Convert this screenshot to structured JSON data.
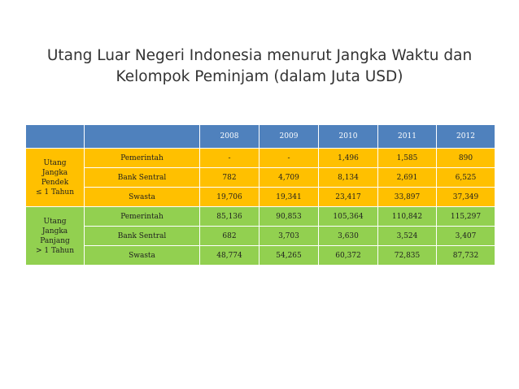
{
  "title": {
    "line1": "Utang Luar Negeri Indonesia menurut Jangka Waktu dan",
    "line2": "Kelompok Peminjam (dalam Juta USD)"
  },
  "table": {
    "years": [
      "2008",
      "2009",
      "2010",
      "2011",
      "2012"
    ],
    "groups": [
      {
        "label_lines": [
          "Utang",
          "Jangka",
          "Pendek",
          "≤ 1 Tahun"
        ],
        "color": "#ffc000",
        "rows": [
          {
            "borrower": "Pemerintah",
            "values": [
              "-",
              "-",
              "1,496",
              "1,585",
              "890"
            ]
          },
          {
            "borrower": "Bank Sentral",
            "values": [
              "782",
              "4,709",
              "8,134",
              "2,691",
              "6,525"
            ]
          },
          {
            "borrower": "Swasta",
            "values": [
              "19,706",
              "19,341",
              "23,417",
              "33,897",
              "37,349"
            ]
          }
        ]
      },
      {
        "label_lines": [
          "Utang",
          "Jangka",
          "Panjang",
          "> 1 Tahun"
        ],
        "color": "#92d050",
        "rows": [
          {
            "borrower": "Pemerintah",
            "values": [
              "85,136",
              "90,853",
              "105,364",
              "110,842",
              "115,297"
            ]
          },
          {
            "borrower": "Bank Sentral",
            "values": [
              "682",
              "3,703",
              "3,630",
              "3,524",
              "3,407"
            ]
          },
          {
            "borrower": "Swasta",
            "values": [
              "48,774",
              "54,265",
              "60,372",
              "72,835",
              "87,732"
            ]
          }
        ]
      }
    ],
    "header_color": "#4f81bd"
  }
}
